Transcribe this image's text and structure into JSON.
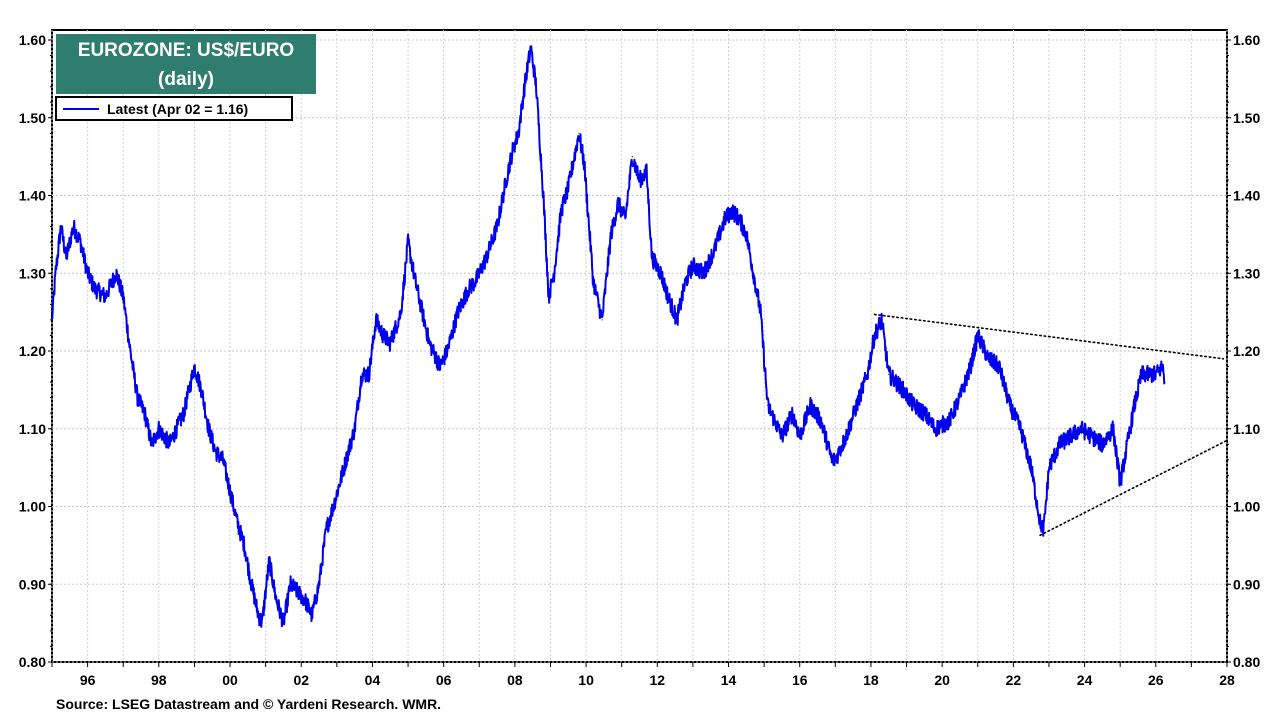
{
  "chart_data": {
    "type": "line",
    "title": "EUROZONE: US$/EURO",
    "subtitle": "(daily)",
    "source": "Source: LSEG Datastream and © Yardeni Research. WMR.",
    "legend": {
      "label": "Latest (Apr 02 = 1.16)",
      "placement": "top-left"
    },
    "ylim": [
      0.8,
      1.6
    ],
    "xlim": [
      1995.0,
      2028.0
    ],
    "y_ticks": [
      "0.80",
      "0.90",
      "1.00",
      "1.10",
      "1.20",
      "1.30",
      "1.40",
      "1.50",
      "1.60"
    ],
    "x_ticks": [
      "96",
      "98",
      "00",
      "02",
      "04",
      "06",
      "08",
      "10",
      "12",
      "14",
      "16",
      "18",
      "20",
      "22",
      "24",
      "26",
      "28"
    ],
    "grid": true,
    "series": [
      {
        "name": "Latest (Apr 02 = 1.16)",
        "color": "#0000ee",
        "x": [
          1995.0,
          1995.1,
          1995.25,
          1995.4,
          1995.6,
          1995.8,
          1996.0,
          1996.2,
          1996.5,
          1996.8,
          1997.0,
          1997.2,
          1997.4,
          1997.6,
          1997.8,
          1998.0,
          1998.3,
          1998.5,
          1998.7,
          1999.0,
          1999.2,
          1999.4,
          1999.6,
          1999.8,
          2000.0,
          2000.2,
          2000.4,
          2000.6,
          2000.8,
          2000.9,
          2001.1,
          2001.3,
          2001.5,
          2001.7,
          2001.9,
          2002.1,
          2002.3,
          2002.5,
          2002.7,
          2002.9,
          2003.2,
          2003.5,
          2003.7,
          2003.9,
          2004.1,
          2004.3,
          2004.5,
          2004.8,
          2005.0,
          2005.2,
          2005.4,
          2005.6,
          2005.9,
          2006.1,
          2006.4,
          2006.7,
          2006.9,
          2007.2,
          2007.5,
          2007.8,
          2007.95,
          2008.1,
          2008.3,
          2008.45,
          2008.6,
          2008.8,
          2008.95,
          2009.1,
          2009.3,
          2009.5,
          2009.8,
          2009.95,
          2010.2,
          2010.45,
          2010.7,
          2010.9,
          2011.1,
          2011.3,
          2011.5,
          2011.7,
          2011.85,
          2012.1,
          2012.3,
          2012.55,
          2012.8,
          2013.0,
          2013.3,
          2013.6,
          2013.9,
          2014.1,
          2014.3,
          2014.5,
          2014.7,
          2014.9,
          2015.1,
          2015.2,
          2015.5,
          2015.8,
          2016.0,
          2016.3,
          2016.6,
          2016.9,
          2017.0,
          2017.3,
          2017.6,
          2017.9,
          2018.1,
          2018.3,
          2018.5,
          2018.9,
          2019.2,
          2019.5,
          2019.8,
          2020.2,
          2020.5,
          2020.8,
          2021.0,
          2021.3,
          2021.6,
          2021.9,
          2022.2,
          2022.5,
          2022.75,
          2022.85,
          2023.0,
          2023.3,
          2023.6,
          2023.9,
          2024.2,
          2024.5,
          2024.8,
          2025.0,
          2025.2,
          2025.4,
          2025.6,
          2025.8,
          2026.0,
          2026.2,
          2026.25
        ],
        "values": [
          1.24,
          1.3,
          1.36,
          1.32,
          1.36,
          1.34,
          1.3,
          1.28,
          1.27,
          1.3,
          1.27,
          1.2,
          1.14,
          1.12,
          1.08,
          1.1,
          1.08,
          1.1,
          1.12,
          1.18,
          1.15,
          1.1,
          1.07,
          1.06,
          1.02,
          0.98,
          0.95,
          0.9,
          0.86,
          0.85,
          0.93,
          0.88,
          0.85,
          0.9,
          0.89,
          0.88,
          0.86,
          0.9,
          0.97,
          1.0,
          1.05,
          1.1,
          1.17,
          1.17,
          1.24,
          1.22,
          1.21,
          1.25,
          1.34,
          1.29,
          1.25,
          1.21,
          1.18,
          1.2,
          1.25,
          1.28,
          1.29,
          1.32,
          1.36,
          1.43,
          1.46,
          1.48,
          1.55,
          1.59,
          1.54,
          1.4,
          1.27,
          1.3,
          1.38,
          1.41,
          1.48,
          1.44,
          1.29,
          1.24,
          1.35,
          1.39,
          1.37,
          1.45,
          1.42,
          1.43,
          1.32,
          1.3,
          1.27,
          1.24,
          1.29,
          1.31,
          1.3,
          1.33,
          1.37,
          1.38,
          1.37,
          1.35,
          1.3,
          1.25,
          1.13,
          1.12,
          1.09,
          1.12,
          1.09,
          1.13,
          1.11,
          1.06,
          1.06,
          1.09,
          1.13,
          1.17,
          1.22,
          1.24,
          1.17,
          1.15,
          1.13,
          1.12,
          1.1,
          1.11,
          1.14,
          1.18,
          1.22,
          1.19,
          1.18,
          1.13,
          1.1,
          1.05,
          0.98,
          0.97,
          1.05,
          1.08,
          1.09,
          1.1,
          1.09,
          1.08,
          1.1,
          1.03,
          1.08,
          1.13,
          1.17,
          1.17,
          1.17,
          1.18,
          1.16
        ]
      }
    ],
    "trendlines": [
      {
        "style": "dotted",
        "x": [
          2018.1,
          2027.9
        ],
        "values": [
          1.247,
          1.19
        ]
      },
      {
        "style": "dotted",
        "x": [
          2022.75,
          2028.0
        ],
        "values": [
          0.963,
          1.085
        ]
      }
    ]
  }
}
